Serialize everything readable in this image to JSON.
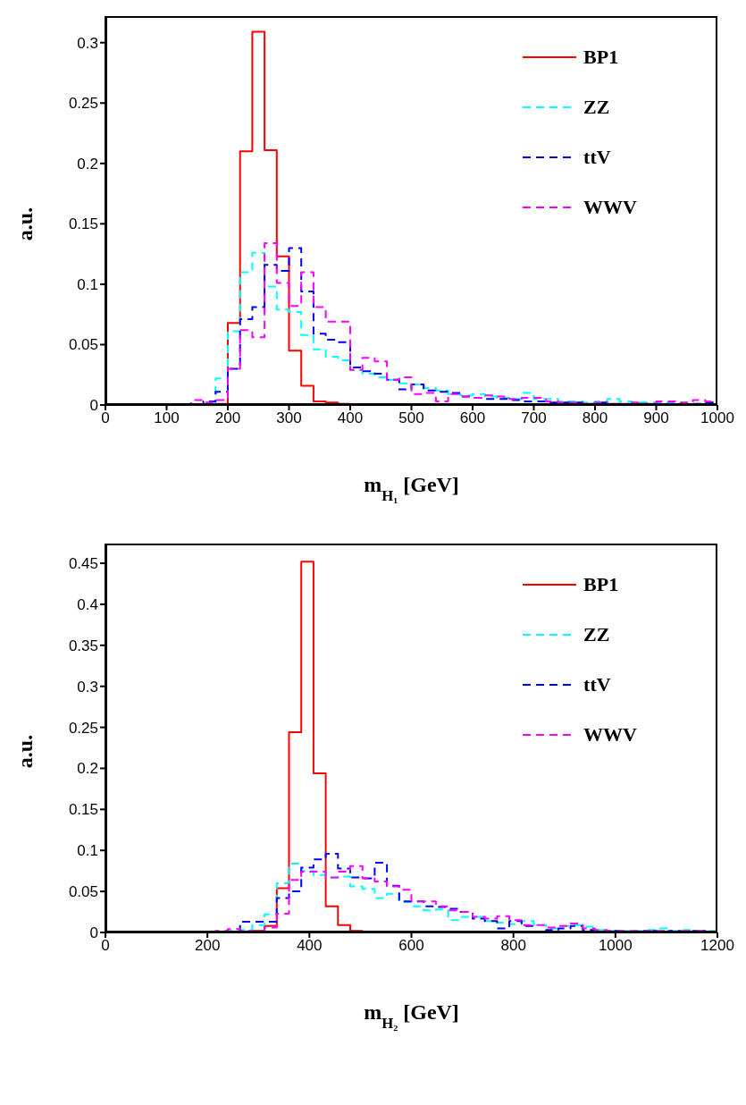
{
  "chart_data": [
    {
      "type": "histogram",
      "xlabel": "m$_{H₁}$[GeV]",
      "ylabel": "a.u.",
      "legend": "top right",
      "grid": false,
      "bins": [
        0,
        20,
        40,
        60,
        80,
        100,
        120,
        140,
        160,
        180,
        200,
        220,
        240,
        260,
        280,
        300,
        320,
        340,
        360,
        380,
        400,
        420,
        440,
        460,
        480,
        500,
        520,
        540,
        560,
        580,
        600,
        620,
        640,
        660,
        680,
        700,
        720,
        740,
        760,
        780,
        800,
        820,
        840,
        860,
        880,
        900,
        920,
        940,
        960,
        980,
        1000
      ],
      "xlim": [
        0,
        1000
      ],
      "xticks": [
        0,
        100,
        200,
        300,
        400,
        500,
        600,
        700,
        800,
        900,
        1000
      ],
      "ylim": [
        0,
        0.322
      ],
      "yticks": [
        0,
        0.05,
        0.1,
        0.15,
        0.2,
        0.25,
        0.3
      ],
      "series": [
        {
          "name": "BP1",
          "color": "#ff0000",
          "line_style": "solid",
          "values": [
            0,
            0,
            0,
            0,
            0,
            0,
            0,
            0,
            0,
            0.001,
            0.068,
            0.21,
            0.309,
            0.211,
            0.123,
            0.045,
            0.016,
            0.003,
            0.002,
            0.001,
            0,
            0,
            0,
            0,
            0,
            0,
            0,
            0,
            0,
            0,
            0,
            0,
            0,
            0,
            0,
            0,
            0,
            0,
            0,
            0,
            0,
            0,
            0,
            0,
            0,
            0,
            0,
            0,
            0,
            0
          ]
        },
        {
          "name": "ZZ",
          "color": "#00ffff",
          "line_style": "dashed",
          "values": [
            0,
            0,
            0,
            0,
            0,
            0,
            0,
            0,
            0.001,
            0.022,
            0.061,
            0.11,
            0.126,
            0.098,
            0.079,
            0.077,
            0.058,
            0.046,
            0.04,
            0.037,
            0.029,
            0.026,
            0.023,
            0.021,
            0.018,
            0.017,
            0.014,
            0.012,
            0.009,
            0.008,
            0.009,
            0.007,
            0.006,
            0.005,
            0.01,
            0.005,
            0.005,
            0.003,
            0.003,
            0.002,
            0.003,
            0.005,
            0.003,
            0.002,
            0.002,
            0.002,
            0.002,
            0.002,
            0.001,
            0.002
          ]
        },
        {
          "name": "ttV",
          "color": "#0000ff",
          "line_style": "dashed",
          "values": [
            0,
            0,
            0,
            0,
            0,
            0,
            0,
            0,
            0.003,
            0.011,
            0.03,
            0.071,
            0.081,
            0.116,
            0.111,
            0.13,
            0.094,
            0.059,
            0.054,
            0.052,
            0.031,
            0.028,
            0.026,
            0.021,
            0.013,
            0.017,
            0.012,
            0.011,
            0.01,
            0.007,
            0.006,
            0.005,
            0.005,
            0.004,
            0.003,
            0.003,
            0.002,
            0.002,
            0.002,
            0.001,
            0.002,
            0.001,
            0.001,
            0.001,
            0.001,
            0.001,
            0.001,
            0.001,
            0.001,
            0.002
          ]
        },
        {
          "name": "WWV",
          "color": "#ff00ff",
          "line_style": "dashed",
          "values": [
            0,
            0,
            0,
            0,
            0,
            0,
            0,
            0.004,
            0.002,
            0.004,
            0.03,
            0.062,
            0.056,
            0.134,
            0.101,
            0.082,
            0.11,
            0.081,
            0.069,
            0.069,
            0.029,
            0.039,
            0.036,
            0.021,
            0.023,
            0.009,
            0.01,
            0.003,
            0.009,
            0.007,
            0.006,
            0.008,
            0.007,
            0.005,
            0.006,
            0.006,
            0.003,
            0.002,
            0.002,
            0.001,
            0.002,
            0.001,
            0.001,
            0.002,
            0.001,
            0.003,
            0.003,
            0.002,
            0.004,
            0.003
          ]
        }
      ]
    },
    {
      "type": "histogram",
      "xlabel": "m$_{H₂}$[GeV]",
      "ylabel": "a.u.",
      "legend": "top right",
      "grid": false,
      "bins": [
        0,
        24,
        48,
        72,
        96,
        120,
        144,
        168,
        192,
        216,
        240,
        264,
        288,
        312,
        336,
        360,
        384,
        408,
        432,
        456,
        480,
        504,
        528,
        552,
        576,
        600,
        624,
        648,
        672,
        696,
        720,
        744,
        768,
        792,
        816,
        840,
        864,
        888,
        912,
        936,
        960,
        984,
        1008,
        1032,
        1056,
        1080,
        1104,
        1128,
        1152,
        1176,
        1200
      ],
      "xlim": [
        0,
        1200
      ],
      "xticks": [
        0,
        200,
        400,
        600,
        800,
        1000,
        1200
      ],
      "ylim": [
        0,
        0.474
      ],
      "yticks": [
        0,
        0.05,
        0.1,
        0.15,
        0.2,
        0.25,
        0.3,
        0.35,
        0.4,
        0.45
      ],
      "series": [
        {
          "name": "BP1",
          "color": "#ff0000",
          "line_style": "solid",
          "values": [
            0,
            0,
            0,
            0,
            0,
            0,
            0,
            0,
            0,
            0,
            0,
            0,
            0.002,
            0.008,
            0.054,
            0.244,
            0.452,
            0.194,
            0.032,
            0.009,
            0.002,
            0,
            0,
            0,
            0,
            0,
            0,
            0,
            0,
            0,
            0,
            0,
            0,
            0,
            0,
            0,
            0,
            0,
            0,
            0,
            0,
            0,
            0,
            0,
            0,
            0,
            0,
            0,
            0,
            0
          ]
        },
        {
          "name": "ZZ",
          "color": "#00ffff",
          "line_style": "dashed",
          "values": [
            0,
            0,
            0,
            0,
            0,
            0,
            0,
            0,
            0,
            0,
            0.002,
            0.003,
            0.009,
            0.022,
            0.06,
            0.084,
            0.075,
            0.07,
            0.067,
            0.068,
            0.056,
            0.053,
            0.042,
            0.047,
            0.037,
            0.032,
            0.027,
            0.028,
            0.015,
            0.019,
            0.019,
            0.014,
            0.012,
            0.01,
            0.014,
            0.009,
            0.005,
            0.008,
            0.009,
            0.007,
            0.003,
            0.002,
            0.002,
            0.002,
            0.003,
            0.005,
            0.002,
            0.003,
            0.002,
            0.002
          ]
        },
        {
          "name": "ttV",
          "color": "#0000ff",
          "line_style": "dashed",
          "values": [
            0,
            0,
            0,
            0,
            0,
            0,
            0,
            0,
            0,
            0,
            0.001,
            0.013,
            0.013,
            0.013,
            0.042,
            0.05,
            0.079,
            0.089,
            0.096,
            0.078,
            0.067,
            0.066,
            0.085,
            0.057,
            0.038,
            0.038,
            0.032,
            0.031,
            0.029,
            0.025,
            0.017,
            0.014,
            0.005,
            0.014,
            0.008,
            0.001,
            0.003,
            0.005,
            0.008,
            0.003,
            0.001,
            0.002,
            0.001,
            0.001,
            0.002,
            0.001,
            0.002,
            0.001,
            0.002,
            0.001
          ]
        },
        {
          "name": "WWV",
          "color": "#ff00ff",
          "line_style": "dashed",
          "values": [
            0,
            0,
            0,
            0,
            0,
            0,
            0,
            0,
            0,
            0.002,
            0.004,
            0.002,
            0.002,
            0.006,
            0.023,
            0.064,
            0.074,
            0.074,
            0.067,
            0.074,
            0.081,
            0.066,
            0.062,
            0.056,
            0.052,
            0.038,
            0.038,
            0.032,
            0.027,
            0.025,
            0.019,
            0.017,
            0.02,
            0.015,
            0.009,
            0.009,
            0.006,
            0.008,
            0.011,
            0.005,
            0.003,
            0.002,
            0.002,
            0.002,
            0.002,
            0.002,
            0.001,
            0.002,
            0.002,
            0.001
          ]
        }
      ]
    }
  ]
}
